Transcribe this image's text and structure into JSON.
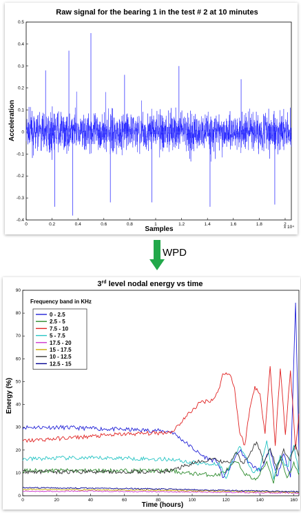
{
  "arrow": {
    "label": "WPD",
    "color": "#22a84a"
  },
  "chart_data": [
    {
      "type": "line",
      "title": "Raw signal for the bearing 1 in the test # 2 at 10 minutes",
      "xlabel": "Samples",
      "ylabel": "Acceleration",
      "xlim": [
        0,
        20480
      ],
      "ylim": [
        -0.4,
        0.5
      ],
      "x_scale_note": "x 10⁴",
      "x_ticks": [
        "0",
        "0.2",
        "0.4",
        "0.6",
        "0.8",
        "1",
        "1.2",
        "1.4",
        "1.6",
        "1.8",
        "2"
      ],
      "y_ticks": [
        "0.5",
        "0.4",
        "0.3",
        "0.2",
        "0.1",
        "0",
        "-0.1",
        "-0.2",
        "-0.3",
        "-0.4"
      ],
      "grid": false,
      "series": [
        {
          "color": "#1a1aff",
          "envelope": {
            "typical_amplitude": 0.1,
            "max_peak": 0.45,
            "min_peak": -0.38
          },
          "spikes": [
            {
              "x": 3300,
              "y": 0.37
            },
            {
              "x": 5000,
              "y": 0.45
            },
            {
              "x": 1500,
              "y": 0.28
            },
            {
              "x": 7600,
              "y": 0.26
            },
            {
              "x": 11800,
              "y": 0.3
            },
            {
              "x": 16600,
              "y": 0.24
            },
            {
              "x": 2200,
              "y": -0.34
            },
            {
              "x": 3600,
              "y": -0.38
            },
            {
              "x": 6500,
              "y": -0.32
            },
            {
              "x": 9700,
              "y": -0.32
            },
            {
              "x": 14200,
              "y": -0.34
            },
            {
              "x": 19200,
              "y": -0.33
            }
          ]
        }
      ]
    },
    {
      "type": "line",
      "title": "3rd level nodal energy vs time",
      "title_parts": {
        "pre": "3",
        "sup": "rd",
        "post": " level nodal energy vs time"
      },
      "xlabel": "Time (hours)",
      "ylabel": "Energy (%)",
      "xlim": [
        0,
        163
      ],
      "ylim": [
        0,
        90
      ],
      "x_ticks": [
        "0",
        "20",
        "40",
        "60",
        "80",
        "100",
        "120",
        "140",
        "160"
      ],
      "y_ticks": [
        "0",
        "10",
        "20",
        "30",
        "40",
        "50",
        "60",
        "70",
        "80",
        "90"
      ],
      "grid": false,
      "legend_title": "Frequency band in KHz",
      "legend_position": "top-left",
      "series": [
        {
          "name": "0 - 2.5",
          "color": "#1f1fd6",
          "points": [
            [
              0,
              30
            ],
            [
              20,
              30
            ],
            [
              40,
              29.5
            ],
            [
              60,
              29
            ],
            [
              80,
              28.5
            ],
            [
              88,
              28
            ],
            [
              95,
              24
            ],
            [
              100,
              21
            ],
            [
              105,
              18
            ],
            [
              110,
              16
            ],
            [
              115,
              15
            ],
            [
              118,
              8
            ],
            [
              122,
              12
            ],
            [
              128,
              20
            ],
            [
              134,
              14
            ],
            [
              140,
              11
            ],
            [
              146,
              20
            ],
            [
              150,
              8
            ],
            [
              154,
              18
            ],
            [
              158,
              9
            ],
            [
              161,
              85
            ],
            [
              163,
              20
            ]
          ]
        },
        {
          "name": "2.5 - 5",
          "color": "#2e8b2e",
          "points": [
            [
              0,
              11
            ],
            [
              20,
              11
            ],
            [
              40,
              11
            ],
            [
              60,
              11
            ],
            [
              80,
              11
            ],
            [
              88,
              11
            ],
            [
              95,
              10
            ],
            [
              105,
              9.5
            ],
            [
              115,
              9
            ],
            [
              120,
              11
            ],
            [
              126,
              15
            ],
            [
              132,
              9
            ],
            [
              138,
              7
            ],
            [
              144,
              15
            ],
            [
              148,
              6
            ],
            [
              152,
              17
            ],
            [
              156,
              8
            ],
            [
              160,
              14
            ],
            [
              163,
              9
            ]
          ]
        },
        {
          "name": "7.5 - 10",
          "color": "#e02020",
          "points": [
            [
              0,
              24
            ],
            [
              20,
              25
            ],
            [
              40,
              26
            ],
            [
              60,
              27
            ],
            [
              80,
              27.5
            ],
            [
              88,
              28
            ],
            [
              92,
              31
            ],
            [
              98,
              36
            ],
            [
              105,
              41
            ],
            [
              112,
              42
            ],
            [
              115,
              45
            ],
            [
              118,
              53
            ],
            [
              122,
              54
            ],
            [
              125,
              47
            ],
            [
              128,
              28
            ],
            [
              131,
              22
            ],
            [
              134,
              38
            ],
            [
              137,
              48
            ],
            [
              140,
              44
            ],
            [
              143,
              28
            ],
            [
              146,
              57
            ],
            [
              149,
              22
            ],
            [
              152,
              56
            ],
            [
              155,
              27
            ],
            [
              158,
              55
            ],
            [
              161,
              20
            ],
            [
              163,
              36
            ]
          ]
        },
        {
          "name": "5 - 7.5",
          "color": "#25c4c4",
          "points": [
            [
              0,
              16
            ],
            [
              20,
              16.5
            ],
            [
              40,
              16.5
            ],
            [
              60,
              16.5
            ],
            [
              80,
              16
            ],
            [
              88,
              16
            ],
            [
              100,
              14.5
            ],
            [
              110,
              14
            ],
            [
              116,
              14
            ],
            [
              120,
              8
            ],
            [
              124,
              16
            ],
            [
              128,
              22
            ],
            [
              132,
              16
            ],
            [
              136,
              10
            ],
            [
              140,
              12
            ],
            [
              144,
              24
            ],
            [
              148,
              8
            ],
            [
              152,
              18
            ],
            [
              156,
              12
            ],
            [
              160,
              22
            ],
            [
              163,
              10
            ]
          ]
        },
        {
          "name": "17.5 - 20",
          "color": "#cc33cc",
          "points": [
            [
              0,
              2
            ],
            [
              40,
              2
            ],
            [
              80,
              1.8
            ],
            [
              120,
              1.5
            ],
            [
              160,
              1.2
            ],
            [
              163,
              1
            ]
          ]
        },
        {
          "name": "15 - 17.5",
          "color": "#c9a800",
          "points": [
            [
              0,
              2.8
            ],
            [
              40,
              2.6
            ],
            [
              80,
              2.4
            ],
            [
              120,
              2
            ],
            [
              160,
              1.6
            ],
            [
              163,
              1.5
            ]
          ]
        },
        {
          "name": "10 - 12.5",
          "color": "#333333",
          "points": [
            [
              0,
              10.5
            ],
            [
              20,
              10.5
            ],
            [
              40,
              10.5
            ],
            [
              60,
              10.5
            ],
            [
              80,
              10.5
            ],
            [
              88,
              11
            ],
            [
              95,
              13
            ],
            [
              105,
              15
            ],
            [
              112,
              16
            ],
            [
              118,
              15
            ],
            [
              122,
              14
            ],
            [
              126,
              19
            ],
            [
              130,
              14
            ],
            [
              134,
              18
            ],
            [
              138,
              24
            ],
            [
              142,
              15
            ],
            [
              146,
              21
            ],
            [
              150,
              12
            ],
            [
              154,
              20
            ],
            [
              158,
              16
            ],
            [
              161,
              23
            ],
            [
              163,
              17
            ]
          ]
        },
        {
          "name": "12.5 - 15",
          "color": "#000090",
          "points": [
            [
              0,
              3.5
            ],
            [
              40,
              3.3
            ],
            [
              80,
              3
            ],
            [
              110,
              2.5
            ],
            [
              130,
              2.2
            ],
            [
              150,
              2
            ],
            [
              163,
              1.8
            ]
          ]
        }
      ]
    }
  ]
}
